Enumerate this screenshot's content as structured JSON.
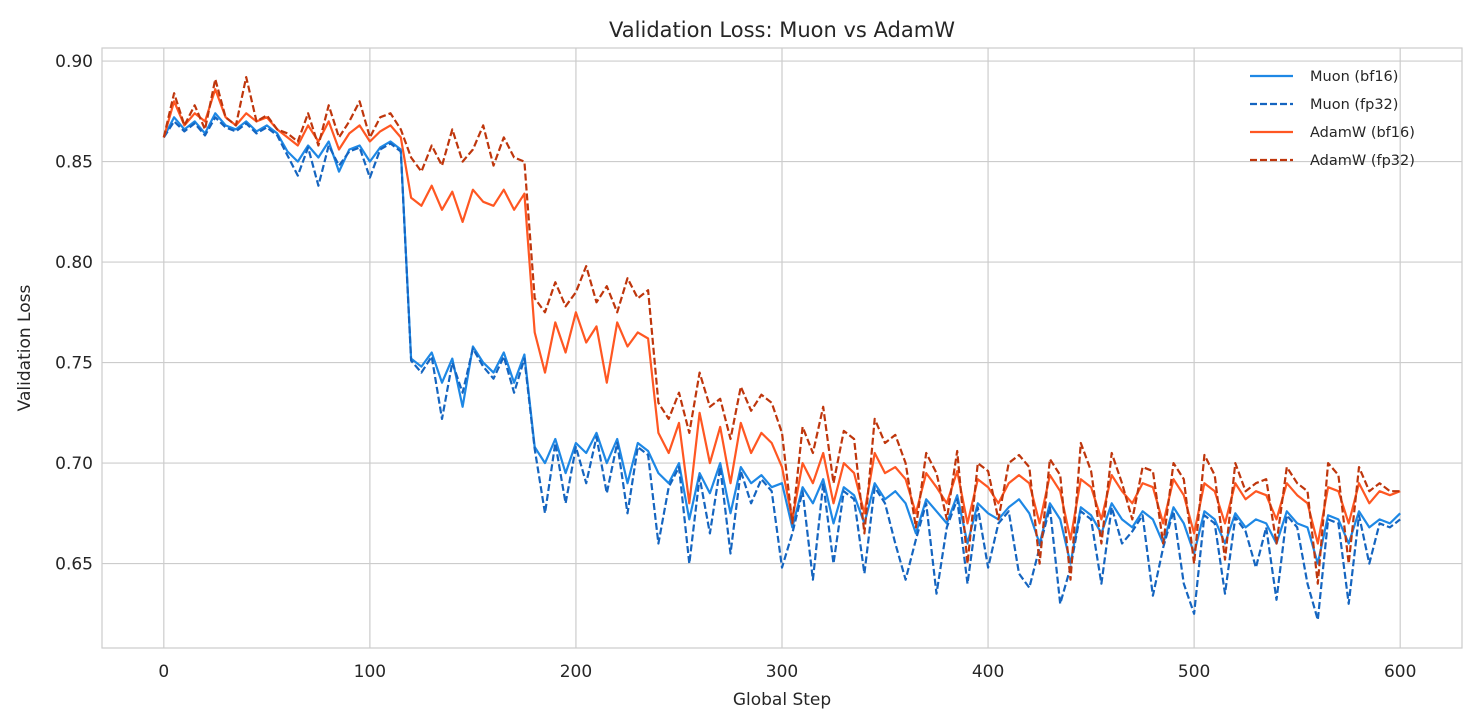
{
  "chart_data": {
    "type": "line",
    "title": "Validation Loss: Muon vs AdamW",
    "xlabel": "Global Step",
    "ylabel": "Validation Loss",
    "xlim": [
      -30,
      630
    ],
    "ylim": [
      0.608,
      0.9065
    ],
    "xticks": [
      0,
      100,
      200,
      300,
      400,
      500,
      600
    ],
    "xtick_labels": [
      "0",
      "100",
      "200",
      "300",
      "400",
      "500",
      "600"
    ],
    "yticks": [
      0.65,
      0.7,
      0.75,
      0.8,
      0.85,
      0.9
    ],
    "ytick_labels": [
      "0.65",
      "0.70",
      "0.75",
      "0.80",
      "0.85",
      "0.90"
    ],
    "grid": true,
    "legend_position": "top-right",
    "x": [
      0,
      5,
      10,
      15,
      20,
      25,
      30,
      35,
      40,
      45,
      50,
      55,
      60,
      65,
      70,
      75,
      80,
      85,
      90,
      95,
      100,
      105,
      110,
      115,
      120,
      125,
      130,
      135,
      140,
      145,
      150,
      155,
      160,
      165,
      170,
      175,
      180,
      185,
      190,
      195,
      200,
      205,
      210,
      215,
      220,
      225,
      230,
      235,
      240,
      245,
      250,
      255,
      260,
      265,
      270,
      275,
      280,
      285,
      290,
      295,
      300,
      305,
      310,
      315,
      320,
      325,
      330,
      335,
      340,
      345,
      350,
      355,
      360,
      365,
      370,
      375,
      380,
      385,
      390,
      395,
      400,
      405,
      410,
      415,
      420,
      425,
      430,
      435,
      440,
      445,
      450,
      455,
      460,
      465,
      470,
      475,
      480,
      485,
      490,
      495,
      500,
      505,
      510,
      515,
      520,
      525,
      530,
      535,
      540,
      545,
      550,
      555,
      560,
      565,
      570,
      575,
      580,
      585,
      590,
      595,
      600
    ],
    "series": [
      {
        "name": "Muon (bf16)",
        "color": "#1E88E5",
        "dashed": false,
        "values": [
          0.862,
          0.872,
          0.866,
          0.87,
          0.864,
          0.874,
          0.868,
          0.866,
          0.87,
          0.865,
          0.868,
          0.864,
          0.855,
          0.85,
          0.858,
          0.852,
          0.86,
          0.845,
          0.856,
          0.858,
          0.85,
          0.857,
          0.86,
          0.856,
          0.752,
          0.748,
          0.755,
          0.74,
          0.752,
          0.728,
          0.758,
          0.75,
          0.745,
          0.755,
          0.74,
          0.754,
          0.708,
          0.7,
          0.712,
          0.695,
          0.71,
          0.705,
          0.715,
          0.7,
          0.712,
          0.69,
          0.71,
          0.706,
          0.695,
          0.69,
          0.7,
          0.672,
          0.695,
          0.685,
          0.7,
          0.675,
          0.698,
          0.69,
          0.694,
          0.688,
          0.69,
          0.668,
          0.688,
          0.68,
          0.692,
          0.67,
          0.688,
          0.684,
          0.67,
          0.69,
          0.682,
          0.686,
          0.68,
          0.665,
          0.682,
          0.676,
          0.67,
          0.684,
          0.66,
          0.68,
          0.675,
          0.672,
          0.678,
          0.682,
          0.675,
          0.66,
          0.68,
          0.672,
          0.65,
          0.678,
          0.674,
          0.665,
          0.68,
          0.672,
          0.668,
          0.676,
          0.672,
          0.66,
          0.678,
          0.67,
          0.655,
          0.676,
          0.672,
          0.66,
          0.675,
          0.668,
          0.672,
          0.67,
          0.66,
          0.676,
          0.67,
          0.668,
          0.65,
          0.674,
          0.672,
          0.66,
          0.676,
          0.668,
          0.672,
          0.67,
          0.675
        ]
      },
      {
        "name": "Muon (fp32)",
        "color": "#1565C0",
        "dashed": true,
        "values": [
          0.862,
          0.87,
          0.865,
          0.869,
          0.863,
          0.872,
          0.867,
          0.865,
          0.869,
          0.864,
          0.867,
          0.863,
          0.853,
          0.843,
          0.857,
          0.838,
          0.858,
          0.848,
          0.855,
          0.857,
          0.842,
          0.856,
          0.859,
          0.855,
          0.751,
          0.745,
          0.753,
          0.722,
          0.75,
          0.735,
          0.757,
          0.748,
          0.742,
          0.753,
          0.735,
          0.752,
          0.707,
          0.675,
          0.71,
          0.68,
          0.708,
          0.69,
          0.713,
          0.685,
          0.71,
          0.675,
          0.708,
          0.704,
          0.66,
          0.688,
          0.698,
          0.65,
          0.693,
          0.665,
          0.698,
          0.655,
          0.696,
          0.68,
          0.692,
          0.686,
          0.648,
          0.665,
          0.686,
          0.642,
          0.69,
          0.65,
          0.686,
          0.682,
          0.645,
          0.688,
          0.68,
          0.66,
          0.642,
          0.662,
          0.68,
          0.635,
          0.668,
          0.682,
          0.64,
          0.678,
          0.648,
          0.67,
          0.676,
          0.645,
          0.638,
          0.658,
          0.678,
          0.63,
          0.648,
          0.676,
          0.672,
          0.64,
          0.678,
          0.66,
          0.666,
          0.674,
          0.634,
          0.658,
          0.676,
          0.64,
          0.625,
          0.674,
          0.67,
          0.635,
          0.673,
          0.666,
          0.648,
          0.668,
          0.632,
          0.674,
          0.668,
          0.64,
          0.622,
          0.672,
          0.67,
          0.63,
          0.674,
          0.65,
          0.67,
          0.668,
          0.672
        ]
      },
      {
        "name": "AdamW (bf16)",
        "color": "#FF5722",
        "dashed": false,
        "values": [
          0.862,
          0.88,
          0.868,
          0.874,
          0.87,
          0.886,
          0.872,
          0.868,
          0.874,
          0.87,
          0.872,
          0.866,
          0.862,
          0.858,
          0.868,
          0.86,
          0.87,
          0.856,
          0.864,
          0.868,
          0.86,
          0.865,
          0.868,
          0.862,
          0.832,
          0.828,
          0.838,
          0.826,
          0.835,
          0.82,
          0.836,
          0.83,
          0.828,
          0.836,
          0.826,
          0.834,
          0.765,
          0.745,
          0.77,
          0.755,
          0.775,
          0.76,
          0.768,
          0.74,
          0.77,
          0.758,
          0.765,
          0.762,
          0.715,
          0.705,
          0.72,
          0.68,
          0.725,
          0.7,
          0.718,
          0.69,
          0.72,
          0.705,
          0.715,
          0.71,
          0.698,
          0.672,
          0.7,
          0.69,
          0.705,
          0.68,
          0.7,
          0.695,
          0.675,
          0.705,
          0.695,
          0.698,
          0.692,
          0.675,
          0.695,
          0.688,
          0.68,
          0.696,
          0.67,
          0.692,
          0.688,
          0.68,
          0.69,
          0.694,
          0.69,
          0.67,
          0.694,
          0.686,
          0.662,
          0.692,
          0.688,
          0.672,
          0.694,
          0.686,
          0.68,
          0.69,
          0.688,
          0.67,
          0.692,
          0.684,
          0.665,
          0.69,
          0.686,
          0.67,
          0.69,
          0.682,
          0.686,
          0.684,
          0.672,
          0.69,
          0.684,
          0.68,
          0.66,
          0.688,
          0.686,
          0.67,
          0.69,
          0.68,
          0.686,
          0.684,
          0.686
        ]
      },
      {
        "name": "AdamW (fp32)",
        "color": "#BF360C",
        "dashed": true,
        "values": [
          0.862,
          0.884,
          0.868,
          0.878,
          0.866,
          0.891,
          0.872,
          0.868,
          0.892,
          0.87,
          0.873,
          0.866,
          0.864,
          0.86,
          0.874,
          0.858,
          0.878,
          0.862,
          0.87,
          0.88,
          0.862,
          0.872,
          0.874,
          0.866,
          0.852,
          0.845,
          0.858,
          0.848,
          0.866,
          0.85,
          0.856,
          0.868,
          0.848,
          0.862,
          0.852,
          0.85,
          0.782,
          0.775,
          0.79,
          0.778,
          0.785,
          0.798,
          0.78,
          0.788,
          0.775,
          0.792,
          0.782,
          0.786,
          0.73,
          0.722,
          0.735,
          0.715,
          0.745,
          0.728,
          0.732,
          0.712,
          0.738,
          0.726,
          0.734,
          0.73,
          0.715,
          0.67,
          0.718,
          0.705,
          0.728,
          0.69,
          0.716,
          0.712,
          0.665,
          0.722,
          0.71,
          0.714,
          0.7,
          0.668,
          0.705,
          0.695,
          0.672,
          0.706,
          0.65,
          0.7,
          0.696,
          0.672,
          0.7,
          0.704,
          0.698,
          0.65,
          0.702,
          0.694,
          0.642,
          0.71,
          0.696,
          0.66,
          0.705,
          0.69,
          0.672,
          0.698,
          0.696,
          0.66,
          0.7,
          0.692,
          0.65,
          0.704,
          0.694,
          0.652,
          0.7,
          0.686,
          0.69,
          0.692,
          0.66,
          0.698,
          0.69,
          0.686,
          0.64,
          0.7,
          0.694,
          0.65,
          0.698,
          0.686,
          0.69,
          0.686,
          0.686
        ]
      }
    ]
  }
}
